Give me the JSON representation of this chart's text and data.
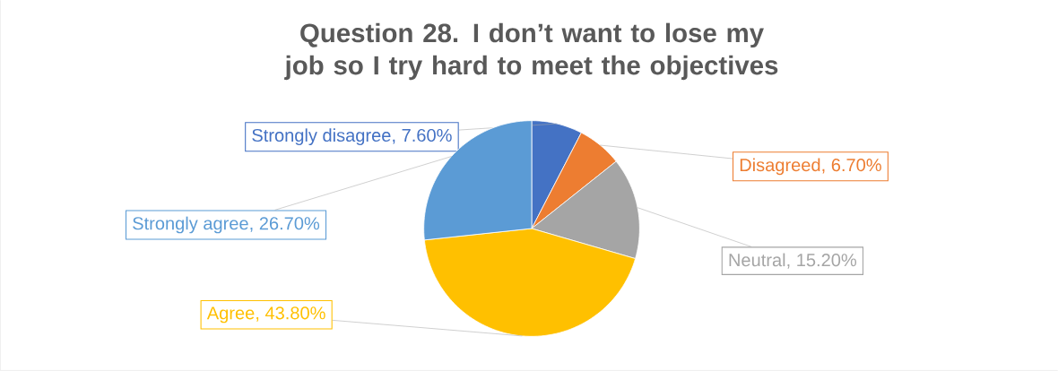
{
  "chart_data": {
    "type": "pie",
    "title": "Question 28. I don’t want to lose my job so I try hard to meet the objectives",
    "categories": [
      "Strongly disagree",
      "Disagreed",
      "Neutral",
      "Agree",
      "Strongly agree"
    ],
    "values": [
      7.6,
      6.7,
      15.2,
      43.8,
      26.7
    ],
    "value_labels": [
      ", 7.60%",
      ", 6.70%",
      ", 15.20%",
      ", 43.80%",
      ", 26.70%"
    ],
    "colors": [
      "#4472c4",
      "#ed7d31",
      "#a5a5a5",
      "#ffc000",
      "#5b9bd5"
    ]
  }
}
